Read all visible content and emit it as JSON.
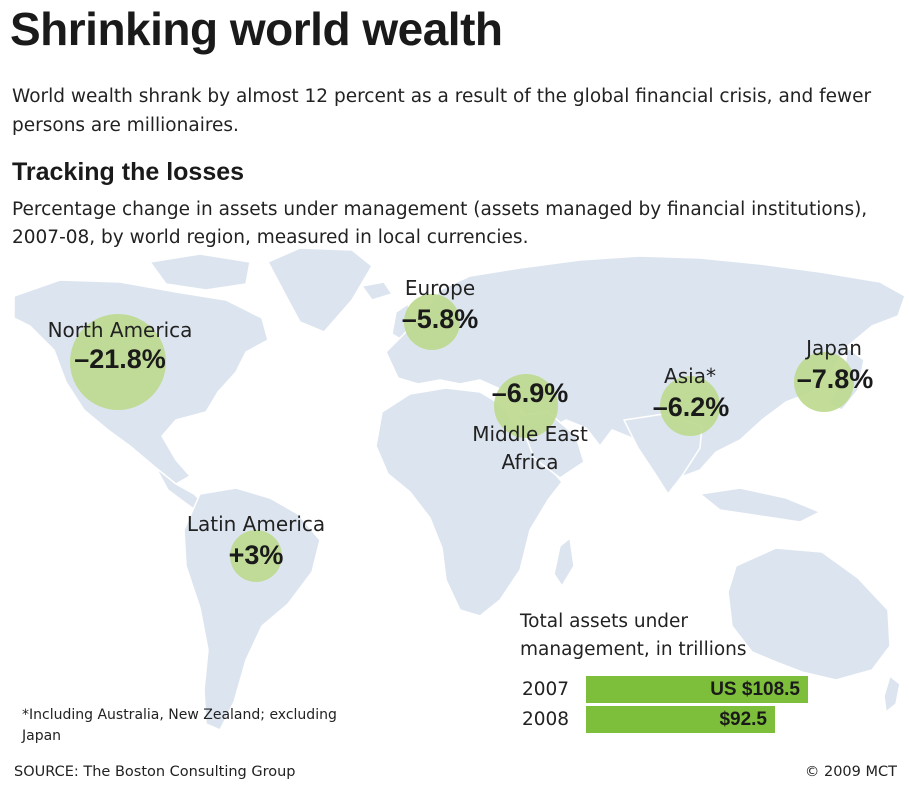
{
  "title": "Shrinking world wealth",
  "subtitle": "World wealth shrank by almost 12 percent as a result of the global financial crisis, and fewer persons are millionaires.",
  "section": {
    "heading": "Tracking the losses",
    "description": "Percentage change in assets under management (assets managed by financial institutions), 2007-08, by world region, measured in local currencies."
  },
  "colors": {
    "land": "#dce5ef",
    "region_bubble": "#bcd98d",
    "bar": "#7dbf3b"
  },
  "regions": {
    "north_america": {
      "name": "North America",
      "change": "–21.8%",
      "value": -21.8
    },
    "europe": {
      "name": "Europe",
      "change": "–5.8%",
      "value": -5.8
    },
    "middle_east_africa": {
      "name_line1": "Middle East",
      "name_line2": "Africa",
      "change": "–6.9%",
      "value": -6.9
    },
    "asia": {
      "name": "Asia*",
      "change": "–6.2%",
      "value": -6.2
    },
    "japan": {
      "name": "Japan",
      "change": "–7.8%",
      "value": -7.8
    },
    "latin_america": {
      "name": "Latin America",
      "change": "+3%",
      "value": 3
    }
  },
  "totals": {
    "caption": "Total assets under management, in trillions",
    "bars": [
      {
        "year": "2007",
        "label": "US $108.5",
        "value": 108.5
      },
      {
        "year": "2008",
        "label": "$92.5",
        "value": 92.5
      }
    ]
  },
  "footnote": "*Including Australia, New Zealand; excluding Japan",
  "source": "SOURCE: The Boston Consulting Group",
  "copyright": "© 2009 MCT"
}
